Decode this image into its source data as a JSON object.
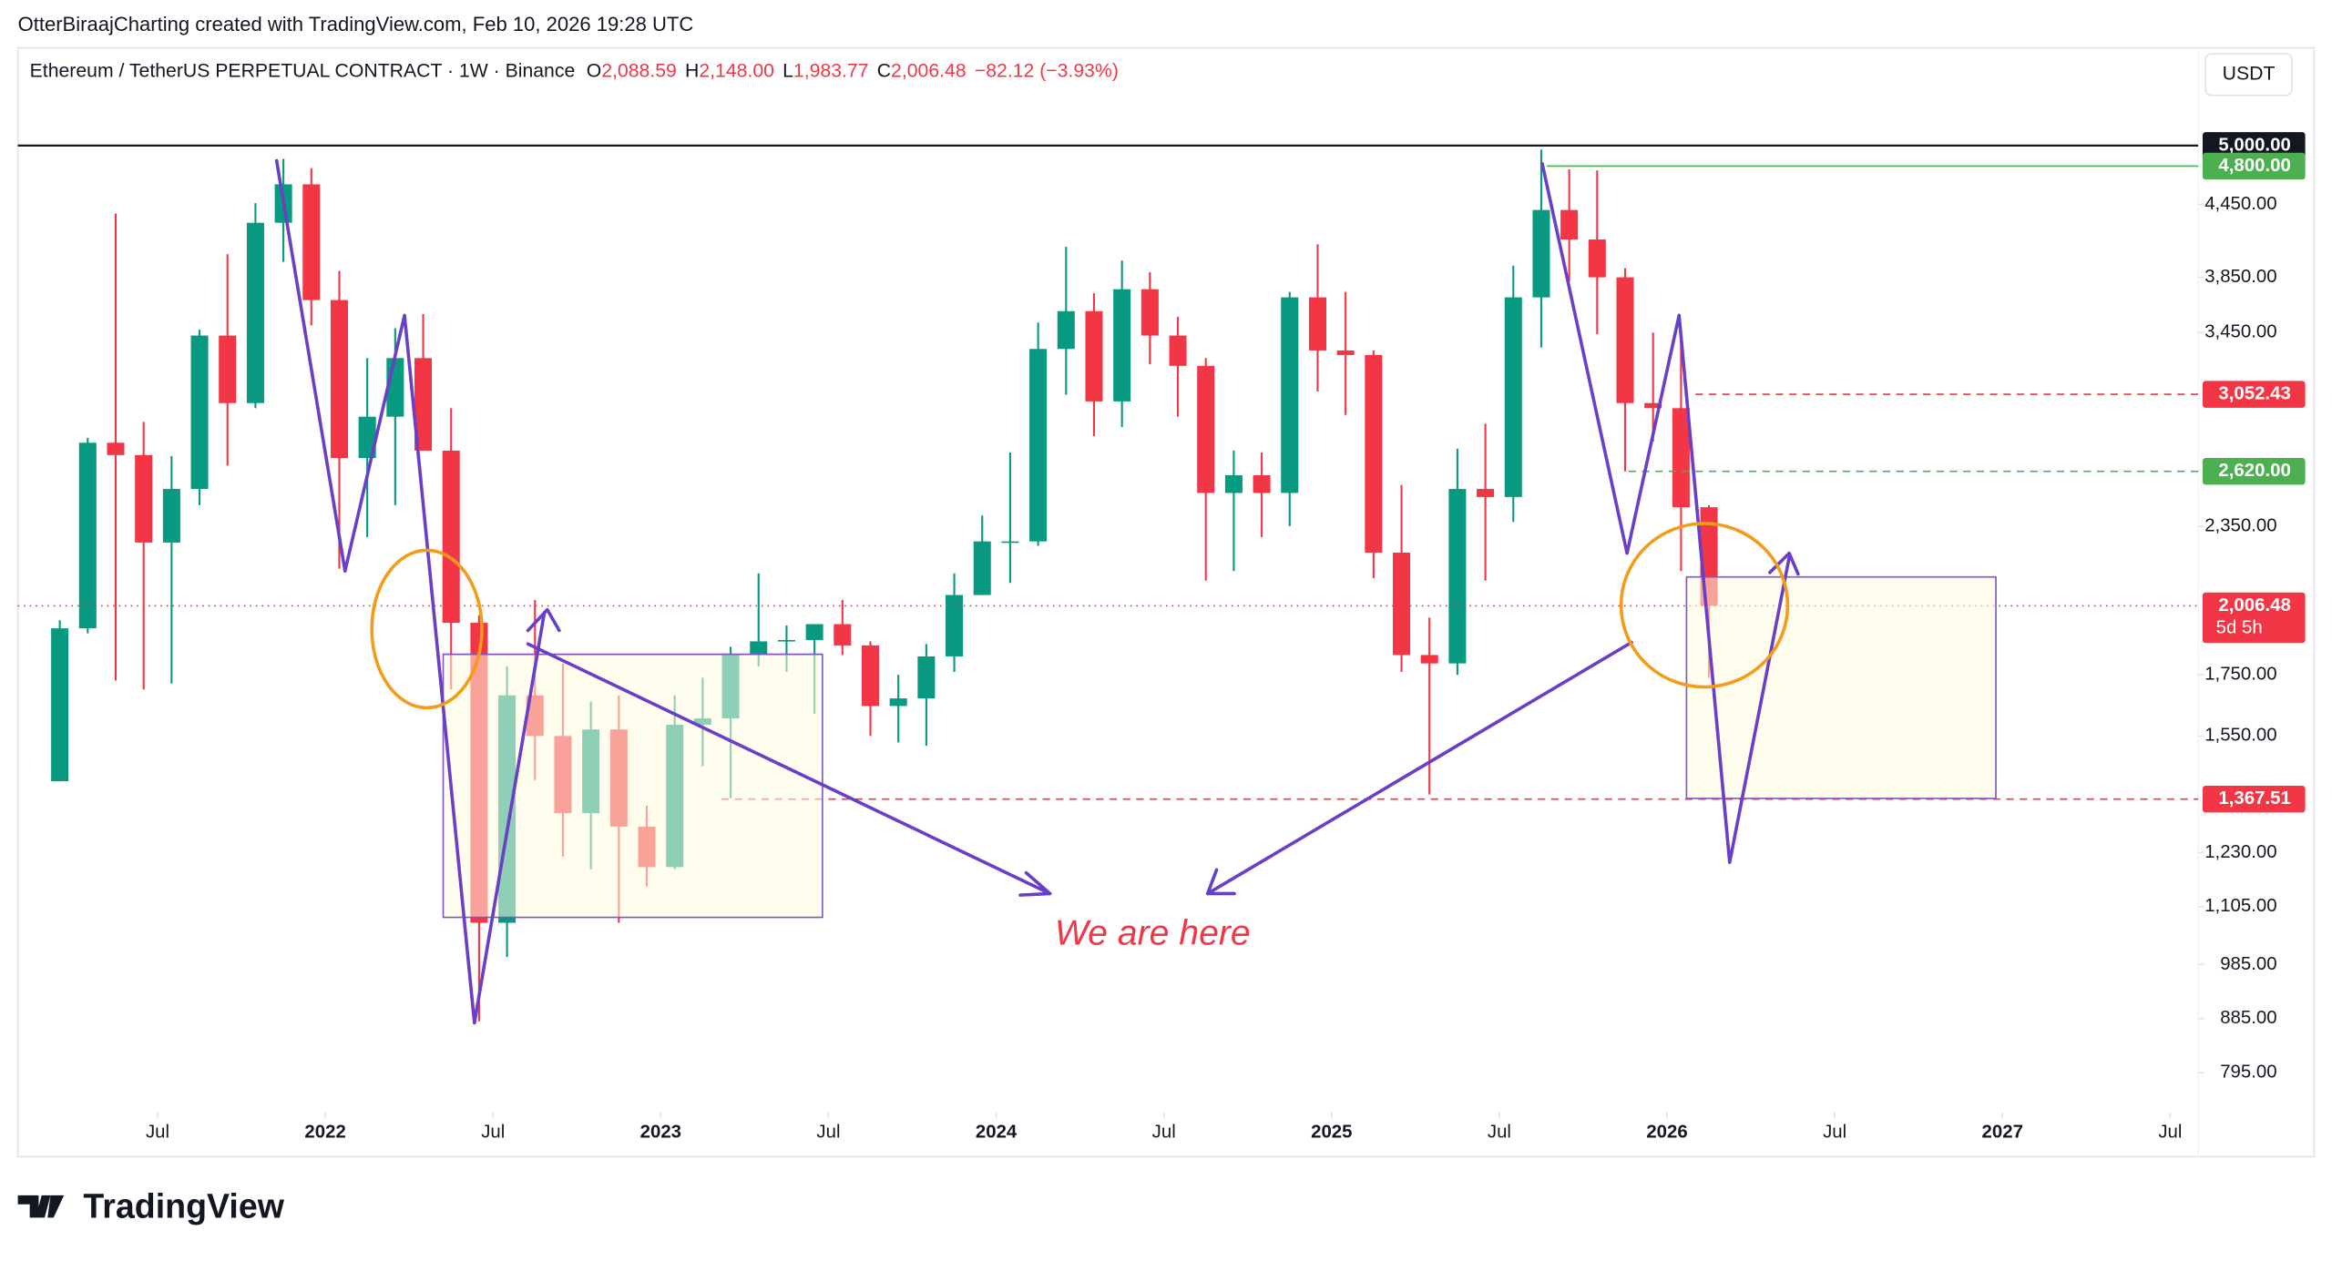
{
  "header": {
    "attribution": "OtterBiraajCharting created with TradingView.com, Feb 10, 2026 19:28 UTC",
    "symbol": "Ethereum / TetherUS PERPETUAL CONTRACT · 1W · Binance",
    "ohlc": [
      {
        "key": "O",
        "value": "2,088.59"
      },
      {
        "key": "H",
        "value": "2,148.00"
      },
      {
        "key": "L",
        "value": "1,983.77"
      },
      {
        "key": "C",
        "value": "2,006.48"
      }
    ],
    "change": "−82.12 (−3.93%)",
    "currency": "USDT"
  },
  "chart_data": {
    "type": "candlestick",
    "log_scale": true,
    "grid": false,
    "up_color": "#089981",
    "down_color": "#f23645",
    "x": [
      "2021-03",
      "2021-04",
      "2021-05",
      "2021-06",
      "2021-07",
      "2021-08",
      "2021-09",
      "2021-10",
      "2021-11",
      "2021-12",
      "2022-01",
      "2022-02",
      "2022-03",
      "2022-04",
      "2022-05",
      "2022-06",
      "2022-07",
      "2022-08",
      "2022-09",
      "2022-10",
      "2022-11",
      "2022-12",
      "2023-01",
      "2023-02",
      "2023-03",
      "2023-04",
      "2023-05",
      "2023-06",
      "2023-07",
      "2023-08",
      "2023-09",
      "2023-10",
      "2023-11",
      "2023-12",
      "2024-01",
      "2024-02",
      "2024-03",
      "2024-04",
      "2024-05",
      "2024-06",
      "2024-07",
      "2024-08",
      "2024-09",
      "2024-10",
      "2024-11",
      "2024-12",
      "2025-01",
      "2025-02",
      "2025-03",
      "2025-04",
      "2025-05",
      "2025-06",
      "2025-07",
      "2025-08",
      "2025-09",
      "2025-10",
      "2025-11",
      "2025-12",
      "2026-01",
      "2026-02"
    ],
    "open": [
      1417,
      1919,
      2773,
      2706,
      2275,
      2530,
      3430,
      3000,
      4290,
      4630,
      3680,
      2690,
      2920,
      3280,
      2730,
      1940,
      1070,
      1680,
      1550,
      1330,
      1570,
      1295,
      1195,
      1585,
      1605,
      1820,
      1870,
      1875,
      1935,
      1855,
      1645,
      1670,
      1815,
      2050,
      2280,
      2280,
      3340,
      3600,
      3010,
      3760,
      3430,
      3230,
      2510,
      2600,
      2510,
      3700,
      3330,
      3300,
      2230,
      1820,
      1790,
      2530,
      2490,
      3700,
      4400,
      4150,
      3850,
      3000,
      2970,
      2440
    ],
    "high": [
      1950,
      2800,
      4370,
      2890,
      2700,
      3470,
      4030,
      4460,
      4870,
      4780,
      3900,
      3280,
      3480,
      3580,
      2970,
      1970,
      1780,
      2030,
      1790,
      1660,
      1680,
      1350,
      1680,
      1740,
      1850,
      2140,
      1930,
      1930,
      2030,
      1870,
      1750,
      1860,
      2140,
      2400,
      2720,
      3520,
      4090,
      3730,
      3980,
      3890,
      3560,
      3280,
      2730,
      2720,
      3740,
      4110,
      3740,
      3330,
      2550,
      1960,
      2740,
      2880,
      3940,
      4960,
      4770,
      4760,
      3920,
      3450,
      3400,
      2450
    ],
    "low": [
      1440,
      1900,
      1730,
      1700,
      1720,
      2450,
      2650,
      2970,
      3970,
      3500,
      2160,
      2300,
      2450,
      2780,
      1700,
      880,
      1000,
      1420,
      1220,
      1190,
      1070,
      1150,
      1190,
      1460,
      1370,
      1780,
      1760,
      1620,
      1820,
      1550,
      1530,
      1520,
      1760,
      2050,
      2100,
      2260,
      3050,
      2810,
      2860,
      3240,
      2920,
      2110,
      2150,
      2300,
      2350,
      3070,
      2930,
      2120,
      1760,
      1380,
      1750,
      2110,
      2370,
      3350,
      3820,
      3440,
      2620,
      2780,
      2150,
      1740
    ],
    "close": [
      1919,
      2773,
      2706,
      2275,
      2530,
      3430,
      3000,
      4290,
      4630,
      3680,
      2690,
      2920,
      3280,
      2730,
      1940,
      1070,
      1680,
      1550,
      1330,
      1570,
      1295,
      1195,
      1585,
      1605,
      1820,
      1870,
      1875,
      1935,
      1855,
      1645,
      1670,
      1815,
      2050,
      2280,
      2280,
      3340,
      3600,
      3010,
      3760,
      3430,
      3230,
      2510,
      2600,
      2510,
      3700,
      3330,
      3300,
      2230,
      1820,
      1790,
      2530,
      2490,
      3700,
      4400,
      4150,
      3850,
      3000,
      2970,
      2440,
      2006.48
    ],
    "xlim": [
      "2021-02",
      "2027-08"
    ],
    "xticks": [
      {
        "value": "2021-07",
        "label": "Jul"
      },
      {
        "value": "2022-01",
        "label": "2022"
      },
      {
        "value": "2022-07",
        "label": "Jul"
      },
      {
        "value": "2023-01",
        "label": "2023"
      },
      {
        "value": "2023-07",
        "label": "Jul"
      },
      {
        "value": "2024-01",
        "label": "2024"
      },
      {
        "value": "2024-07",
        "label": "Jul"
      },
      {
        "value": "2025-01",
        "label": "2025"
      },
      {
        "value": "2025-07",
        "label": "Jul"
      },
      {
        "value": "2026-01",
        "label": "2026"
      },
      {
        "value": "2026-07",
        "label": "Jul"
      },
      {
        "value": "2027-01",
        "label": "2027"
      },
      {
        "value": "2027-07",
        "label": "Jul"
      }
    ],
    "ylim": [
      735,
      6070
    ],
    "yticks": [
      {
        "value": 795,
        "label": "795.00"
      },
      {
        "value": 885,
        "label": "885.00"
      },
      {
        "value": 985,
        "label": "985.00"
      },
      {
        "value": 1105,
        "label": "1,105.00"
      },
      {
        "value": 1230,
        "label": "1,230.00"
      },
      {
        "value": 1550,
        "label": "1,550.00"
      },
      {
        "value": 1750,
        "label": "1,750.00"
      },
      {
        "value": 2350,
        "label": "2,350.00"
      },
      {
        "value": 3450,
        "label": "3,450.00"
      },
      {
        "value": 3850,
        "label": "3,850.00"
      },
      {
        "value": 4450,
        "label": "4,450.00"
      }
    ],
    "price_lines": [
      {
        "value": 5000,
        "label": "5,000.00",
        "color": "#131722"
      },
      {
        "value": 4800,
        "label": "4,800.00",
        "color": "#4caf50"
      },
      {
        "value": 3052.43,
        "label": "3,052.43",
        "color": "#f23645"
      },
      {
        "value": 2620,
        "label": "2,620.00",
        "color": "#4caf50"
      },
      {
        "value": 2006.48,
        "label": "2,006.48",
        "color": "#f23645",
        "sublabel": "5d 5h"
      },
      {
        "value": 1367.51,
        "label": "1,367.51",
        "color": "#f23645"
      }
    ],
    "annotation": "We are here"
  },
  "footer": {
    "logo": "TradingView"
  }
}
